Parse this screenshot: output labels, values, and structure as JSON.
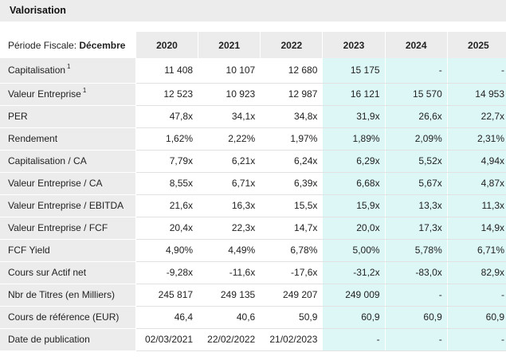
{
  "panel": {
    "title": "Valorisation"
  },
  "header": {
    "label_prefix": "Période Fiscale: ",
    "label_bold": "Décembre",
    "years": [
      "2020",
      "2021",
      "2022",
      "2023",
      "2024",
      "2025"
    ]
  },
  "rows": [
    {
      "label": "Capitalisation",
      "sup": "1",
      "values": [
        "11 408",
        "10 107",
        "12 680",
        "15 175",
        "-",
        "-"
      ]
    },
    {
      "label": "Valeur Entreprise",
      "sup": "1",
      "values": [
        "12 523",
        "10 923",
        "12 987",
        "16 121",
        "15 570",
        "14 953"
      ]
    },
    {
      "label": "PER",
      "sup": "",
      "values": [
        "47,8x",
        "34,1x",
        "34,8x",
        "31,9x",
        "26,6x",
        "22,7x"
      ]
    },
    {
      "label": "Rendement",
      "sup": "",
      "values": [
        "1,62%",
        "2,22%",
        "1,97%",
        "1,89%",
        "2,09%",
        "2,31%"
      ]
    },
    {
      "label": "Capitalisation / CA",
      "sup": "",
      "values": [
        "7,79x",
        "6,21x",
        "6,24x",
        "6,29x",
        "5,52x",
        "4,94x"
      ]
    },
    {
      "label": "Valeur Entreprise / CA",
      "sup": "",
      "values": [
        "8,55x",
        "6,71x",
        "6,39x",
        "6,68x",
        "5,67x",
        "4,87x"
      ]
    },
    {
      "label": "Valeur Entreprise / EBITDA",
      "sup": "",
      "values": [
        "21,6x",
        "16,3x",
        "15,5x",
        "15,9x",
        "13,3x",
        "11,3x"
      ]
    },
    {
      "label": "Valeur Entreprise / FCF",
      "sup": "",
      "values": [
        "20,4x",
        "22,3x",
        "14,7x",
        "20,0x",
        "17,3x",
        "14,9x"
      ]
    },
    {
      "label": "FCF Yield",
      "sup": "",
      "values": [
        "4,90%",
        "4,49%",
        "6,78%",
        "5,00%",
        "5,78%",
        "6,71%"
      ]
    },
    {
      "label": "Cours sur Actif net",
      "sup": "",
      "values": [
        "-9,28x",
        "-11,6x",
        "-17,6x",
        "-31,2x",
        "-83,0x",
        "82,9x"
      ]
    },
    {
      "label": "Nbr de Titres (en Milliers)",
      "sup": "",
      "values": [
        "245 817",
        "249 135",
        "249 207",
        "249 009",
        "-",
        "-"
      ]
    },
    {
      "label": "Cours de référence (EUR)",
      "sup": "",
      "values": [
        "46,4",
        "40,6",
        "50,9",
        "60,9",
        "60,9",
        "60,9"
      ]
    },
    {
      "label": "Date de publication",
      "sup": "",
      "values": [
        "02/03/2021",
        "22/02/2022",
        "21/02/2023",
        "-",
        "-",
        "-"
      ]
    }
  ],
  "colors": {
    "header_bg": "#ececec",
    "forecast_bg": "#ddf7f7"
  },
  "forecast_from_index": 3
}
